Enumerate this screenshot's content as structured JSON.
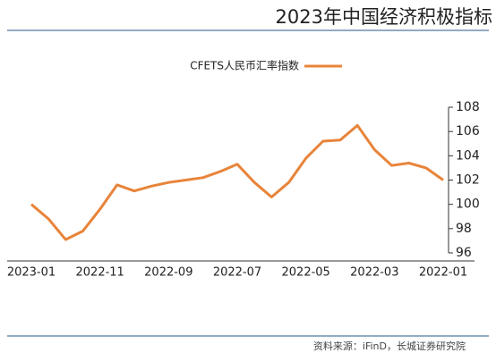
{
  "overlay_title": "2023年中国经济积极指标",
  "source": "资料来源：iFinD，长城证券研究院",
  "chart_data": {
    "type": "line",
    "categories": [
      "2022-01",
      null,
      null,
      null,
      "2022-03",
      null,
      null,
      null,
      "2022-05",
      null,
      null,
      null,
      "2022-07",
      null,
      null,
      null,
      "2022-09",
      null,
      null,
      null,
      "2022-11",
      null,
      null,
      null,
      "2023-01"
    ],
    "series": [
      {
        "name": "CFETS人民币汇率指数",
        "color": "#e8843a",
        "values": [
          102.0,
          103.0,
          103.4,
          103.2,
          104.5,
          106.5,
          105.3,
          105.2,
          103.8,
          101.8,
          100.6,
          101.8,
          103.3,
          102.7,
          102.2,
          102.0,
          101.8,
          101.5,
          101.1,
          101.6,
          99.6,
          97.8,
          97.1,
          98.8,
          100.0
        ]
      }
    ],
    "ylim": [
      96,
      108
    ],
    "yticks": [
      96,
      98,
      100,
      102,
      104,
      106,
      108
    ],
    "y_axis_side": "right",
    "x_reversed": true
  }
}
